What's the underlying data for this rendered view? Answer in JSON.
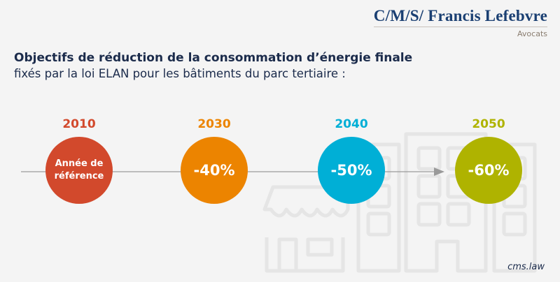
{
  "logo": {
    "name": "C/M/S/ Francis Lefebvre",
    "subtitle": "Avocats"
  },
  "heading": {
    "title": "Objectifs de réduction de la consommation d’énergie finale",
    "subtitle": "fixés par la loi ELAN pour les bâtiments du parc tertiaire :"
  },
  "timeline": [
    {
      "year": "2010",
      "label": "Année de référence",
      "color": "#d2492c"
    },
    {
      "year": "2030",
      "label": "-40%",
      "color": "#ec8400"
    },
    {
      "year": "2040",
      "label": "-50%",
      "color": "#00afd6"
    },
    {
      "year": "2050",
      "label": "-60%",
      "color": "#afb300"
    }
  ],
  "footer": "cms.law"
}
